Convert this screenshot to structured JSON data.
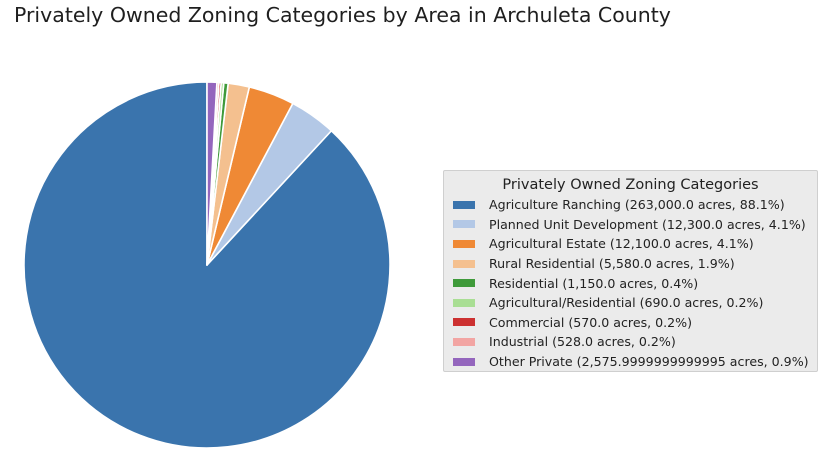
{
  "chart_data": {
    "type": "pie",
    "title": "Privately Owned Zoning Categories by Area in Archuleta County",
    "legend_title": "Privately Owned Zoning Categories",
    "legend_position": "right",
    "start_angle": "top, counter-clockwise",
    "slices": [
      {
        "label": "Agriculture Ranching (263,000.0 acres, 88.1%)",
        "value": 263000.0,
        "color": "#3a74ad"
      },
      {
        "label": "Planned Unit Development (12,300.0 acres, 4.1%)",
        "value": 12300.0,
        "color": "#b3c8e6"
      },
      {
        "label": "Agricultural Estate (12,100.0 acres, 4.1%)",
        "value": 12100.0,
        "color": "#ef8935"
      },
      {
        "label": "Rural Residential (5,580.0 acres, 1.9%)",
        "value": 5580.0,
        "color": "#f4c08f"
      },
      {
        "label": "Residential (1,150.0 acres, 0.4%)",
        "value": 1150.0,
        "color": "#3f9a3a"
      },
      {
        "label": "Agricultural/Residential (690.0 acres, 0.2%)",
        "value": 690.0,
        "color": "#a9de94"
      },
      {
        "label": "Commercial (570.0 acres, 0.2%)",
        "value": 570.0,
        "color": "#cc3131"
      },
      {
        "label": "Industrial (528.0 acres, 0.2%)",
        "value": 528.0,
        "color": "#f2a5a3"
      },
      {
        "label": "Other Private (2,575.9999999999995 acres, 0.9%)",
        "value": 2575.9999999999995,
        "color": "#9466bd"
      }
    ]
  }
}
